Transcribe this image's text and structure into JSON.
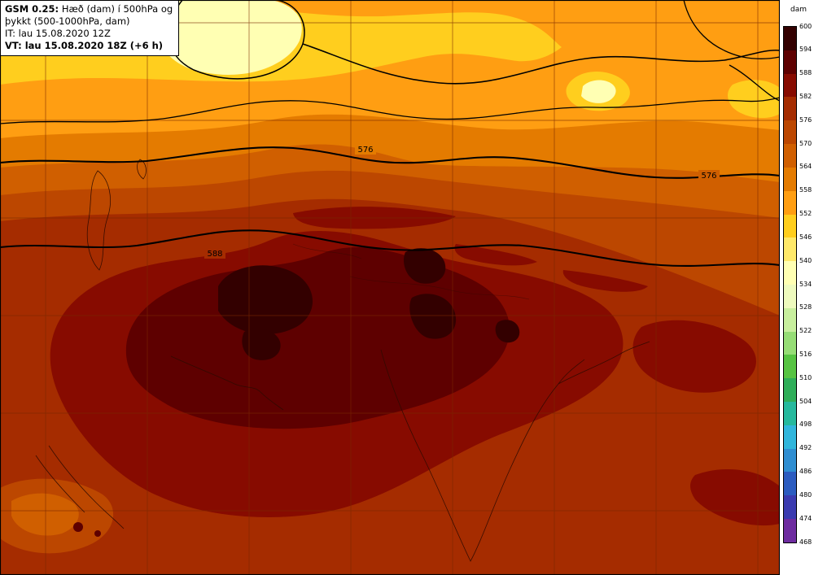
{
  "header": {
    "model": "GSM 0.25:",
    "title_rest": "Hæð (dam) í 500hPa og",
    "title_line2": "þykkt (500-1000hPa, dam)",
    "init_line": "IT: lau 15.08.2020 12Z",
    "valid_line": "VT: lau 15.08.2020 18Z (+6 h)"
  },
  "legend": {
    "unit": "dam",
    "tick_labels": [
      "600",
      "594",
      "588",
      "582",
      "576",
      "570",
      "564",
      "558",
      "552",
      "546",
      "540",
      "534",
      "528",
      "522",
      "516",
      "510",
      "504",
      "498",
      "492",
      "486",
      "480",
      "474",
      "468"
    ],
    "band_colors": [
      "#330000",
      "#5e0000",
      "#870b00",
      "#a52c00",
      "#bc4700",
      "#d05f00",
      "#e47b00",
      "#ff9e12",
      "#ffce1e",
      "#ffe96a",
      "#ffffb3",
      "#eefabe",
      "#c8ef9e",
      "#96dd76",
      "#57c443",
      "#2fae59",
      "#26b99d",
      "#31b6dc",
      "#2f8ed2",
      "#2c5cc0",
      "#3b3bb0",
      "#6e2ca0"
    ]
  },
  "contour_labels": [
    "576",
    "576",
    "588"
  ]
}
